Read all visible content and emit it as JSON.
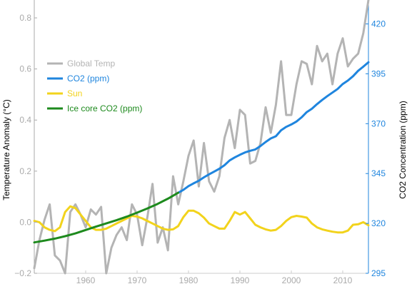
{
  "chart_data": {
    "type": "line",
    "title": "",
    "xlabel": "",
    "xlim": [
      1950,
      2015
    ],
    "x_ticks": [
      "1960",
      "1970",
      "1980",
      "1990",
      "2000",
      "2010"
    ],
    "y_left": {
      "label": "Temperature Anomaly (°C)",
      "range": [
        -0.2,
        0.87
      ],
      "ticks": [
        "−0.2",
        "0.0",
        "0.2",
        "0.4",
        "0.6",
        "0.8"
      ],
      "color": "#aaaaaa"
    },
    "y_right": {
      "label": "CO2 Concentration (ppm)",
      "range": [
        295,
        432
      ],
      "ticks": [
        "295",
        "320",
        "345",
        "370",
        "395",
        "420"
      ],
      "color": "#1f85de"
    },
    "legend_position": "upper-left",
    "grid": false,
    "series": [
      {
        "name": "Global Temp",
        "axis": "left",
        "color": "#b4b4b4",
        "x": [
          1950,
          1951,
          1952,
          1953,
          1954,
          1955,
          1956,
          1957,
          1958,
          1959,
          1960,
          1961,
          1962,
          1963,
          1964,
          1965,
          1966,
          1967,
          1968,
          1969,
          1970,
          1971,
          1972,
          1973,
          1974,
          1975,
          1976,
          1977,
          1978,
          1979,
          1980,
          1981,
          1982,
          1983,
          1984,
          1985,
          1986,
          1987,
          1988,
          1989,
          1990,
          1991,
          1992,
          1993,
          1994,
          1995,
          1996,
          1997,
          1998,
          1999,
          2000,
          2001,
          2002,
          2003,
          2004,
          2005,
          2006,
          2007,
          2008,
          2009,
          2010,
          2011,
          2012,
          2013,
          2014,
          2015
        ],
        "values": [
          -0.18,
          -0.07,
          0.01,
          0.07,
          -0.13,
          -0.15,
          -0.2,
          0.04,
          0.07,
          0.03,
          -0.02,
          0.05,
          0.03,
          0.06,
          -0.2,
          -0.1,
          -0.05,
          -0.02,
          -0.07,
          0.07,
          0.03,
          -0.09,
          0.02,
          0.15,
          -0.08,
          -0.02,
          -0.11,
          0.18,
          0.07,
          0.16,
          0.26,
          0.32,
          0.14,
          0.31,
          0.16,
          0.12,
          0.18,
          0.33,
          0.4,
          0.29,
          0.44,
          0.42,
          0.23,
          0.24,
          0.31,
          0.45,
          0.35,
          0.46,
          0.63,
          0.42,
          0.42,
          0.54,
          0.63,
          0.62,
          0.54,
          0.69,
          0.63,
          0.66,
          0.54,
          0.66,
          0.72,
          0.61,
          0.64,
          0.66,
          0.74,
          0.87
        ]
      },
      {
        "name": "CO2 (ppm)",
        "axis": "right",
        "color": "#1f85de",
        "x": [
          1978,
          1979,
          1980,
          1981,
          1982,
          1983,
          1984,
          1985,
          1986,
          1987,
          1988,
          1989,
          1990,
          1991,
          1992,
          1993,
          1994,
          1995,
          1996,
          1997,
          1998,
          1999,
          2000,
          2001,
          2002,
          2003,
          2004,
          2005,
          2006,
          2007,
          2008,
          2009,
          2010,
          2011,
          2012,
          2013,
          2014,
          2015
        ],
        "values": [
          335.4,
          336.8,
          338.7,
          340.1,
          341.4,
          343.1,
          344.6,
          346.0,
          347.4,
          349.2,
          351.6,
          353.1,
          354.4,
          355.6,
          356.4,
          357.1,
          358.8,
          360.8,
          362.6,
          363.7,
          366.7,
          368.4,
          369.6,
          371.1,
          373.2,
          375.8,
          377.5,
          379.8,
          381.9,
          383.8,
          385.6,
          387.4,
          389.9,
          391.6,
          393.8,
          396.5,
          398.6,
          400.8
        ]
      },
      {
        "name": "Sun",
        "axis": "left",
        "color": "#f2d31c",
        "x": [
          1950,
          1951,
          1952,
          1953,
          1954,
          1955,
          1956,
          1957,
          1958,
          1959,
          1960,
          1961,
          1962,
          1963,
          1964,
          1965,
          1966,
          1967,
          1968,
          1969,
          1970,
          1971,
          1972,
          1973,
          1974,
          1975,
          1976,
          1977,
          1978,
          1979,
          1980,
          1981,
          1982,
          1983,
          1984,
          1985,
          1986,
          1987,
          1988,
          1989,
          1990,
          1991,
          1992,
          1993,
          1994,
          1995,
          1996,
          1997,
          1998,
          1999,
          2000,
          2001,
          2002,
          2003,
          2004,
          2005,
          2006,
          2007,
          2008,
          2009,
          2010,
          2011,
          2012,
          2013,
          2014,
          2015
        ],
        "values": [
          0.005,
          0.0,
          -0.02,
          -0.03,
          -0.035,
          -0.02,
          0.04,
          0.062,
          0.055,
          0.03,
          0.005,
          -0.02,
          -0.03,
          -0.03,
          -0.025,
          -0.015,
          -0.005,
          0.005,
          0.015,
          0.025,
          0.022,
          0.015,
          0.005,
          -0.005,
          -0.015,
          -0.025,
          -0.03,
          -0.028,
          -0.015,
          0.02,
          0.045,
          0.045,
          0.035,
          0.018,
          -0.005,
          -0.015,
          -0.025,
          -0.025,
          0.005,
          0.04,
          0.03,
          0.04,
          0.015,
          -0.01,
          -0.02,
          -0.028,
          -0.033,
          -0.03,
          -0.015,
          0.005,
          0.02,
          0.025,
          0.022,
          0.018,
          -0.005,
          -0.02,
          -0.028,
          -0.033,
          -0.037,
          -0.04,
          -0.04,
          -0.033,
          -0.01,
          -0.008,
          0.0,
          -0.012
        ]
      },
      {
        "name": "Ice core CO2 (ppm)",
        "axis": "right",
        "color": "#1d8a1d",
        "x": [
          1950,
          1952,
          1954,
          1956,
          1958,
          1960,
          1962,
          1964,
          1966,
          1968,
          1970,
          1972,
          1974,
          1976,
          1978
        ],
        "values": [
          310.5,
          311.4,
          312.4,
          313.6,
          315.0,
          316.7,
          318.4,
          320.0,
          321.6,
          323.4,
          325.4,
          327.5,
          329.8,
          332.4,
          335.4
        ]
      }
    ]
  }
}
